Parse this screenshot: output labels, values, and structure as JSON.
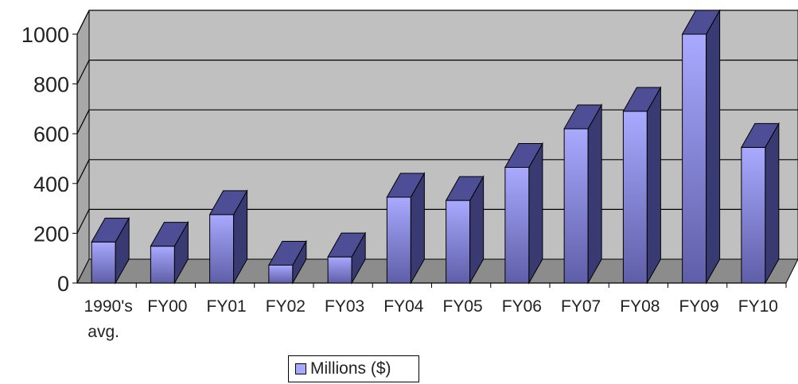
{
  "chart_data": {
    "type": "bar",
    "categories": [
      "1990's avg.",
      "FY00",
      "FY01",
      "FY02",
      "FY03",
      "FY04",
      "FY05",
      "FY06",
      "FY07",
      "FY08",
      "FY09",
      "FY10"
    ],
    "series": [
      {
        "name": "Millions ($)",
        "values": [
          165,
          148,
          275,
          72,
          105,
          345,
          332,
          465,
          620,
          690,
          1000,
          545
        ]
      }
    ],
    "title": "",
    "xlabel": "",
    "ylabel": "",
    "ylim": [
      0,
      1000
    ],
    "yticks": [
      0,
      200,
      400,
      600,
      800,
      1000
    ],
    "grid": true,
    "legend_position": "bottom",
    "style": "3d-column"
  },
  "colors": {
    "bar_front_top": "#a9a9ff",
    "bar_front_bottom": "#5e5ea8",
    "bar_side": "#3a3a72",
    "bar_top": "#4e4e96",
    "wall": "#c0c0c0",
    "floor": "#8c8c8c",
    "grid": "#000000"
  }
}
